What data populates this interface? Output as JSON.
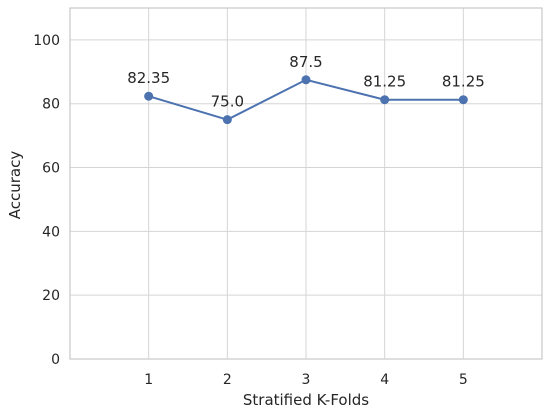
{
  "chart_data": {
    "type": "line",
    "x": [
      1,
      2,
      3,
      4,
      5
    ],
    "series": [
      {
        "values": [
          82.35,
          75.0,
          87.5,
          81.25,
          81.25
        ]
      }
    ],
    "data_labels": [
      "82.35",
      "75.0",
      "87.5",
      "81.25",
      "81.25"
    ],
    "xlabel": "Stratified K-Folds",
    "ylabel": "Accuracy",
    "xlim": [
      0,
      6
    ],
    "ylim": [
      0,
      110
    ],
    "x_ticks": [
      "1",
      "2",
      "3",
      "4",
      "5"
    ],
    "y_ticks": [
      "0",
      "20",
      "40",
      "60",
      "80",
      "100"
    ],
    "grid": true,
    "colors": {
      "line": "#4c72b0",
      "grid": "#d5d5d5",
      "frame": "#c8c8c8"
    }
  }
}
